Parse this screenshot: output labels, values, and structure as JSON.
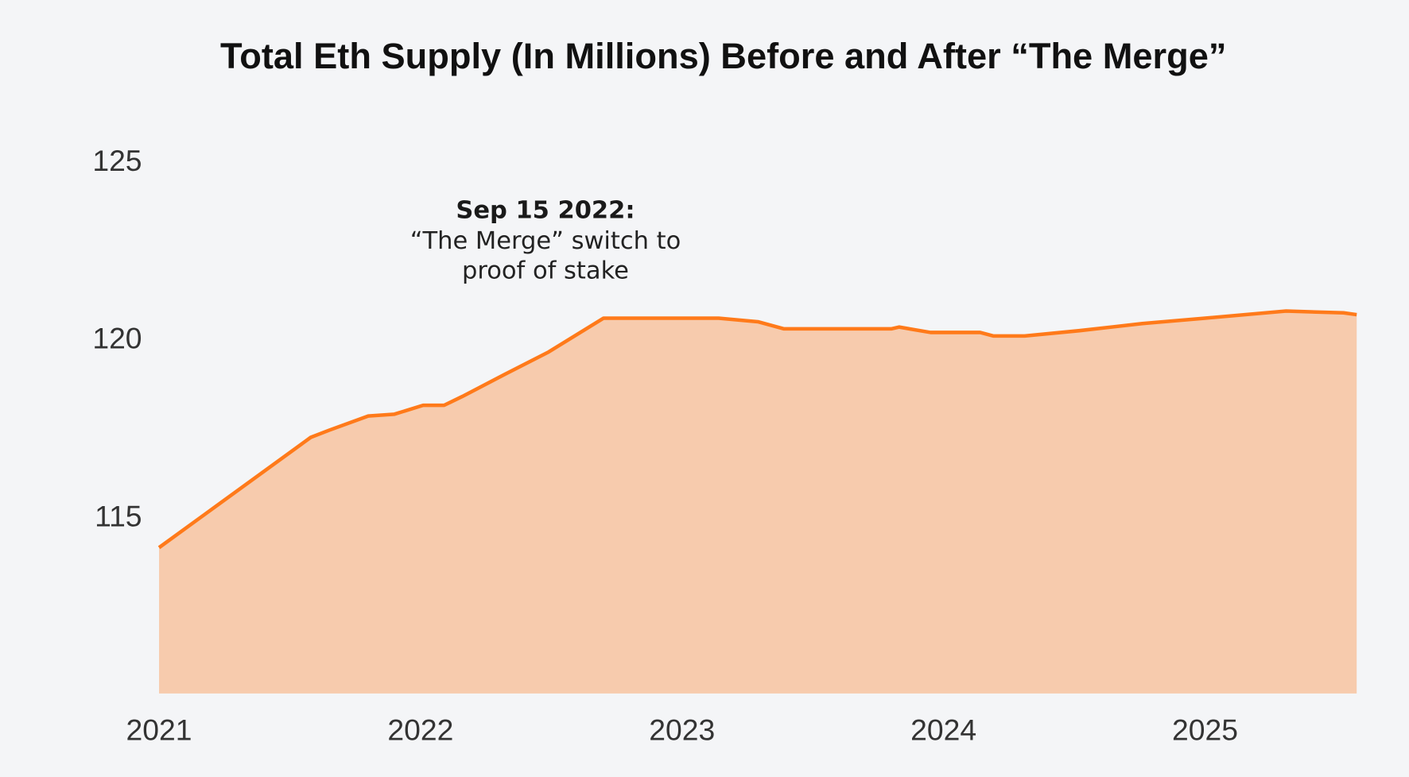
{
  "chart_data": {
    "type": "area",
    "title": "Total Eth Supply (In Millions) Before and After “The Merge”",
    "xlabel": "",
    "ylabel": "",
    "xlim": [
      2021.0,
      2025.58
    ],
    "ylim": [
      110,
      125
    ],
    "x_ticks": [
      "2021",
      "2022",
      "2023",
      "2024",
      "2025"
    ],
    "y_ticks": [
      "115",
      "120",
      "125"
    ],
    "grid": false,
    "legend": "none",
    "colors": {
      "line": "#ff7a1a",
      "fill": "#f7cbad",
      "background": "#f4f5f7"
    },
    "annotation": {
      "x": 2022.71,
      "lines": [
        "Sep 15 2022:",
        "“The Merge” switch to",
        "proof of stake"
      ]
    },
    "series": [
      {
        "x": [
          2021.0,
          2021.58,
          2021.65,
          2021.8,
          2021.9,
          2022.01,
          2022.09,
          2022.16,
          2022.33,
          2022.49,
          2022.7,
          2023.14,
          2023.29,
          2023.39,
          2023.8,
          2023.83,
          2023.95,
          2024.14,
          2024.19,
          2024.31,
          2024.52,
          2024.76,
          2025.0,
          2025.31,
          2025.53,
          2025.58
        ],
        "y": [
          114.1,
          117.2,
          117.4,
          117.8,
          117.85,
          118.1,
          118.1,
          118.35,
          119.0,
          119.6,
          120.55,
          120.55,
          120.45,
          120.25,
          120.25,
          120.3,
          120.15,
          120.15,
          120.05,
          120.05,
          120.2,
          120.4,
          120.55,
          120.75,
          120.7,
          120.65
        ]
      }
    ]
  }
}
